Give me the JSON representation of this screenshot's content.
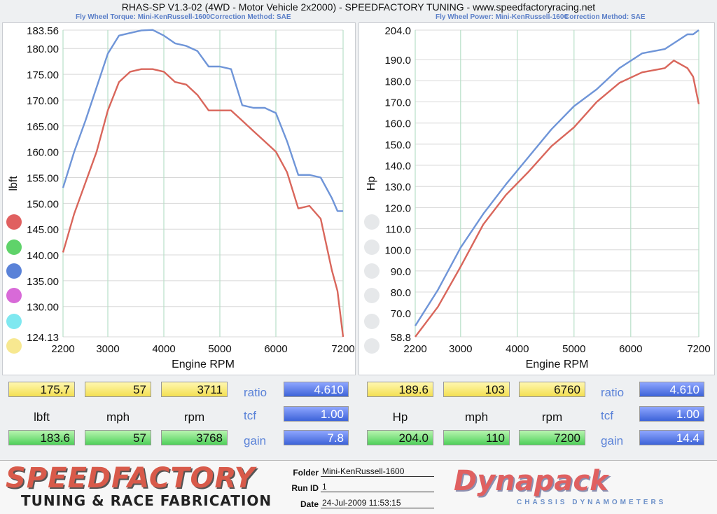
{
  "title": "RHAS-SP V1.3-02  (4WD - Motor Vehicle 2x2000) - SPEEDFACTORY TUNING - www.speedfactoryracing.net",
  "left_subtitle": {
    "a": "Fly Wheel Torque: Mini-KenRussell-1600",
    "b": "Correction Method: SAE"
  },
  "right_subtitle": {
    "a": "Fly Wheel Power: Mini-KenRussell-1600",
    "b": "Correction Method: SAE"
  },
  "colors": {
    "red": "#d9665b",
    "blue": "#6f95d8",
    "grid_v": "#b8e0c8",
    "grid_h": "#d8d8d8"
  },
  "chart_data": [
    {
      "type": "line",
      "title": "Fly Wheel Torque",
      "xlabel": "Engine RPM",
      "ylabel": "lbft",
      "xlim": [
        2200,
        7200
      ],
      "ylim": [
        124.13,
        183.56
      ],
      "xticks": [
        "2200",
        "3000",
        "4000",
        "5000",
        "6000",
        "7200"
      ],
      "yticks": [
        "183.56",
        "180.00",
        "175.00",
        "170.00",
        "165.00",
        "160.00",
        "155.00",
        "150.00",
        "145.00",
        "140.00",
        "135.00",
        "130.00",
        "124.13"
      ],
      "series": [
        {
          "color": "#d9665b",
          "x": [
            2200,
            2400,
            2600,
            2800,
            3000,
            3200,
            3400,
            3600,
            3800,
            4000,
            4200,
            4400,
            4600,
            4800,
            5000,
            5200,
            5400,
            5600,
            5800,
            6000,
            6200,
            6400,
            6600,
            6800,
            7000,
            7100,
            7200
          ],
          "y": [
            140.5,
            148,
            154,
            160,
            168,
            173.5,
            175.5,
            176,
            176,
            175.5,
            173.5,
            173,
            171,
            168,
            168,
            168,
            166,
            164,
            162,
            160,
            156,
            149,
            149.5,
            147,
            137,
            133,
            124.13
          ]
        },
        {
          "color": "#6f95d8",
          "x": [
            2200,
            2400,
            2600,
            2800,
            3000,
            3200,
            3400,
            3600,
            3800,
            4000,
            4200,
            4400,
            4600,
            4800,
            5000,
            5200,
            5400,
            5600,
            5800,
            6000,
            6200,
            6400,
            6600,
            6800,
            7000,
            7100,
            7200
          ],
          "y": [
            153,
            160,
            166,
            172.5,
            179,
            182.5,
            183,
            183.5,
            183.6,
            182.5,
            181,
            180.5,
            179.5,
            176.5,
            176.5,
            176,
            169,
            168.5,
            168.5,
            167.5,
            162,
            155.5,
            155.5,
            155,
            151,
            148.5,
            148.5
          ]
        }
      ]
    },
    {
      "type": "line",
      "title": "Fly Wheel Power",
      "xlabel": "Engine RPM",
      "ylabel": "Hp",
      "xlim": [
        2200,
        7200
      ],
      "ylim": [
        58.8,
        204.0
      ],
      "xticks": [
        "2200",
        "3000",
        "4000",
        "5000",
        "6000",
        "7200"
      ],
      "yticks": [
        "204.0",
        "190.0",
        "180.0",
        "170.0",
        "160.0",
        "150.0",
        "140.0",
        "130.0",
        "120.0",
        "110.0",
        "100.0",
        "90.0",
        "80.0",
        "70.0",
        "58.8"
      ],
      "series": [
        {
          "color": "#d9665b",
          "x": [
            2200,
            2600,
            3000,
            3400,
            3800,
            4200,
            4600,
            5000,
            5400,
            5800,
            6200,
            6600,
            6760,
            7000,
            7100,
            7200
          ],
          "y": [
            58.8,
            73,
            92,
            112,
            126,
            137,
            149,
            158,
            170,
            179,
            184,
            186,
            189.6,
            186,
            182,
            169
          ]
        },
        {
          "color": "#6f95d8",
          "x": [
            2200,
            2600,
            3000,
            3400,
            3800,
            4200,
            4600,
            5000,
            5400,
            5800,
            6200,
            6600,
            7000,
            7100,
            7200
          ],
          "y": [
            64,
            81,
            101,
            117,
            131,
            144,
            157,
            168,
            176,
            186,
            193,
            195,
            202,
            202,
            204
          ]
        }
      ]
    }
  ],
  "left_readout": {
    "top": [
      "175.7",
      "57",
      "3711"
    ],
    "labels": [
      "lbft",
      "mph",
      "rpm"
    ],
    "bottom": [
      "183.6",
      "57",
      "3768"
    ],
    "params": [
      "ratio",
      "tcf",
      "gain"
    ],
    "param_values": [
      "4.610",
      "1.00",
      "7.8"
    ]
  },
  "right_readout": {
    "top": [
      "189.6",
      "103",
      "6760"
    ],
    "labels": [
      "Hp",
      "mph",
      "rpm"
    ],
    "bottom": [
      "204.0",
      "110",
      "7200"
    ],
    "params": [
      "ratio",
      "tcf",
      "gain"
    ],
    "param_values": [
      "4.610",
      "1.00",
      "14.4"
    ]
  },
  "circles_left": [
    "#e06060",
    "#5fd36a",
    "#5a82d8",
    "#d86ad8",
    "#7fe8f0",
    "#f7e890"
  ],
  "footer": {
    "brand": "SPEEDFACTORY",
    "tagline": "TUNING & RACE FABRICATION",
    "folder_label": "Folder",
    "folder_value": "Mini-KenRussell-1600",
    "runid_label": "Run ID",
    "runid_value": "1",
    "date_label": "Date",
    "date_value": "24-Jul-2009  11:53:15",
    "dyna_brand": "Dynapack",
    "dyna_tagline": "CHASSIS  DYNAMOMETERS"
  }
}
